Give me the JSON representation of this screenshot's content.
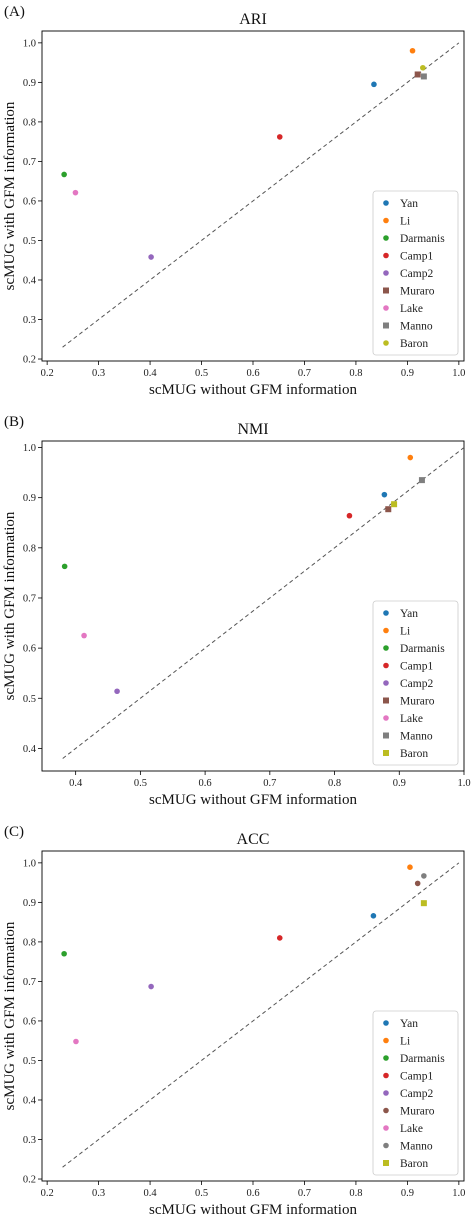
{
  "chart_data": [
    {
      "type": "scatter",
      "panel_label": "(A)",
      "title": "ARI",
      "xlabel": "scMUG without GFM information",
      "ylabel": "scMUG with GFM information",
      "xlim": [
        0.19,
        1.01
      ],
      "ylim": [
        0.195,
        1.03
      ],
      "xticks": [
        0.2,
        0.3,
        0.4,
        0.5,
        0.6,
        0.7,
        0.8,
        0.9,
        1.0
      ],
      "yticks": [
        0.2,
        0.3,
        0.4,
        0.5,
        0.6,
        0.7,
        0.8,
        0.9,
        1.0
      ],
      "diagonal": {
        "from": 0.23,
        "to": 1.0
      },
      "legend_position": "lower-right",
      "series": [
        {
          "name": "Yan",
          "color": "#1f77b4",
          "marker": "circle",
          "x": 0.835,
          "y": 0.895
        },
        {
          "name": "Li",
          "color": "#ff7f0e",
          "marker": "circle",
          "x": 0.91,
          "y": 0.98
        },
        {
          "name": "Darmanis",
          "color": "#2ca02c",
          "marker": "circle",
          "x": 0.233,
          "y": 0.667
        },
        {
          "name": "Camp1",
          "color": "#d62728",
          "marker": "circle",
          "x": 0.652,
          "y": 0.762
        },
        {
          "name": "Camp2",
          "color": "#9467bd",
          "marker": "circle",
          "x": 0.402,
          "y": 0.458
        },
        {
          "name": "Muraro",
          "color": "#8c564b",
          "marker": "square",
          "x": 0.92,
          "y": 0.92
        },
        {
          "name": "Lake",
          "color": "#e377c2",
          "marker": "circle",
          "x": 0.255,
          "y": 0.621
        },
        {
          "name": "Manno",
          "color": "#7f7f7f",
          "marker": "square",
          "x": 0.932,
          "y": 0.915
        },
        {
          "name": "Baron",
          "color": "#bcbd22",
          "marker": "circle",
          "x": 0.93,
          "y": 0.937
        }
      ]
    },
    {
      "type": "scatter",
      "panel_label": "(B)",
      "title": "NMI",
      "xlabel": "scMUG without GFM information",
      "ylabel": "scMUG with GFM information",
      "xlim": [
        0.348,
        1.0
      ],
      "ylim": [
        0.355,
        1.013
      ],
      "xticks": [
        0.4,
        0.5,
        0.6,
        0.7,
        0.8,
        0.9,
        1.0
      ],
      "yticks": [
        0.4,
        0.5,
        0.6,
        0.7,
        0.8,
        0.9,
        1.0
      ],
      "diagonal": {
        "from": 0.38,
        "to": 1.0
      },
      "legend_position": "lower-right",
      "series": [
        {
          "name": "Yan",
          "color": "#1f77b4",
          "marker": "circle",
          "x": 0.877,
          "y": 0.906
        },
        {
          "name": "Li",
          "color": "#ff7f0e",
          "marker": "circle",
          "x": 0.917,
          "y": 0.98
        },
        {
          "name": "Darmanis",
          "color": "#2ca02c",
          "marker": "circle",
          "x": 0.383,
          "y": 0.763
        },
        {
          "name": "Camp1",
          "color": "#d62728",
          "marker": "circle",
          "x": 0.823,
          "y": 0.864
        },
        {
          "name": "Camp2",
          "color": "#9467bd",
          "marker": "circle",
          "x": 0.464,
          "y": 0.514
        },
        {
          "name": "Muraro",
          "color": "#8c564b",
          "marker": "square",
          "x": 0.883,
          "y": 0.877
        },
        {
          "name": "Lake",
          "color": "#e377c2",
          "marker": "circle",
          "x": 0.413,
          "y": 0.625
        },
        {
          "name": "Manno",
          "color": "#7f7f7f",
          "marker": "square",
          "x": 0.935,
          "y": 0.935
        },
        {
          "name": "Baron",
          "color": "#bcbd22",
          "marker": "square",
          "x": 0.892,
          "y": 0.887
        }
      ]
    },
    {
      "type": "scatter",
      "panel_label": "(C)",
      "title": "ACC",
      "xlabel": "scMUG without GFM information",
      "ylabel": "scMUG with GFM information",
      "xlim": [
        0.19,
        1.01
      ],
      "ylim": [
        0.195,
        1.03
      ],
      "xticks": [
        0.2,
        0.3,
        0.4,
        0.5,
        0.6,
        0.7,
        0.8,
        0.9,
        1.0
      ],
      "yticks": [
        0.2,
        0.3,
        0.4,
        0.5,
        0.6,
        0.7,
        0.8,
        0.9,
        1.0
      ],
      "diagonal": {
        "from": 0.23,
        "to": 1.0
      },
      "legend_position": "lower-right",
      "series": [
        {
          "name": "Yan",
          "color": "#1f77b4",
          "marker": "circle",
          "x": 0.834,
          "y": 0.866
        },
        {
          "name": "Li",
          "color": "#ff7f0e",
          "marker": "circle",
          "x": 0.905,
          "y": 0.989
        },
        {
          "name": "Darmanis",
          "color": "#2ca02c",
          "marker": "circle",
          "x": 0.233,
          "y": 0.77
        },
        {
          "name": "Camp1",
          "color": "#d62728",
          "marker": "circle",
          "x": 0.652,
          "y": 0.81
        },
        {
          "name": "Camp2",
          "color": "#9467bd",
          "marker": "circle",
          "x": 0.402,
          "y": 0.687
        },
        {
          "name": "Muraro",
          "color": "#8c564b",
          "marker": "circle",
          "x": 0.92,
          "y": 0.948
        },
        {
          "name": "Lake",
          "color": "#e377c2",
          "marker": "circle",
          "x": 0.256,
          "y": 0.548
        },
        {
          "name": "Manno",
          "color": "#7f7f7f",
          "marker": "circle",
          "x": 0.932,
          "y": 0.967
        },
        {
          "name": "Baron",
          "color": "#bcbd22",
          "marker": "square",
          "x": 0.932,
          "y": 0.898
        }
      ]
    }
  ]
}
